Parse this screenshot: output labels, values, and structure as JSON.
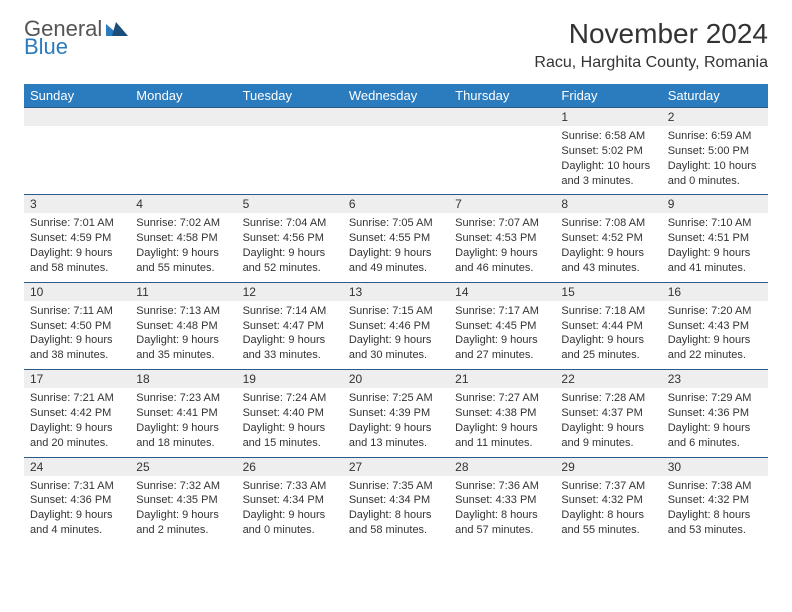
{
  "logo": {
    "general": "General",
    "blue": "Blue"
  },
  "title": "November 2024",
  "location": "Racu, Harghita County, Romania",
  "colors": {
    "header_bg": "#2b7bbf",
    "header_text": "#ffffff",
    "numrow_bg": "#eeeeee",
    "border": "#2b5a8a",
    "text": "#333333",
    "logo_blue": "#2b7bbf",
    "logo_gray": "#555555"
  },
  "day_labels": [
    "Sunday",
    "Monday",
    "Tuesday",
    "Wednesday",
    "Thursday",
    "Friday",
    "Saturday"
  ],
  "weeks": [
    [
      {
        "n": "",
        "sr": "",
        "ss": "",
        "dl": ""
      },
      {
        "n": "",
        "sr": "",
        "ss": "",
        "dl": ""
      },
      {
        "n": "",
        "sr": "",
        "ss": "",
        "dl": ""
      },
      {
        "n": "",
        "sr": "",
        "ss": "",
        "dl": ""
      },
      {
        "n": "",
        "sr": "",
        "ss": "",
        "dl": ""
      },
      {
        "n": "1",
        "sr": "Sunrise: 6:58 AM",
        "ss": "Sunset: 5:02 PM",
        "dl": "Daylight: 10 hours and 3 minutes."
      },
      {
        "n": "2",
        "sr": "Sunrise: 6:59 AM",
        "ss": "Sunset: 5:00 PM",
        "dl": "Daylight: 10 hours and 0 minutes."
      }
    ],
    [
      {
        "n": "3",
        "sr": "Sunrise: 7:01 AM",
        "ss": "Sunset: 4:59 PM",
        "dl": "Daylight: 9 hours and 58 minutes."
      },
      {
        "n": "4",
        "sr": "Sunrise: 7:02 AM",
        "ss": "Sunset: 4:58 PM",
        "dl": "Daylight: 9 hours and 55 minutes."
      },
      {
        "n": "5",
        "sr": "Sunrise: 7:04 AM",
        "ss": "Sunset: 4:56 PM",
        "dl": "Daylight: 9 hours and 52 minutes."
      },
      {
        "n": "6",
        "sr": "Sunrise: 7:05 AM",
        "ss": "Sunset: 4:55 PM",
        "dl": "Daylight: 9 hours and 49 minutes."
      },
      {
        "n": "7",
        "sr": "Sunrise: 7:07 AM",
        "ss": "Sunset: 4:53 PM",
        "dl": "Daylight: 9 hours and 46 minutes."
      },
      {
        "n": "8",
        "sr": "Sunrise: 7:08 AM",
        "ss": "Sunset: 4:52 PM",
        "dl": "Daylight: 9 hours and 43 minutes."
      },
      {
        "n": "9",
        "sr": "Sunrise: 7:10 AM",
        "ss": "Sunset: 4:51 PM",
        "dl": "Daylight: 9 hours and 41 minutes."
      }
    ],
    [
      {
        "n": "10",
        "sr": "Sunrise: 7:11 AM",
        "ss": "Sunset: 4:50 PM",
        "dl": "Daylight: 9 hours and 38 minutes."
      },
      {
        "n": "11",
        "sr": "Sunrise: 7:13 AM",
        "ss": "Sunset: 4:48 PM",
        "dl": "Daylight: 9 hours and 35 minutes."
      },
      {
        "n": "12",
        "sr": "Sunrise: 7:14 AM",
        "ss": "Sunset: 4:47 PM",
        "dl": "Daylight: 9 hours and 33 minutes."
      },
      {
        "n": "13",
        "sr": "Sunrise: 7:15 AM",
        "ss": "Sunset: 4:46 PM",
        "dl": "Daylight: 9 hours and 30 minutes."
      },
      {
        "n": "14",
        "sr": "Sunrise: 7:17 AM",
        "ss": "Sunset: 4:45 PM",
        "dl": "Daylight: 9 hours and 27 minutes."
      },
      {
        "n": "15",
        "sr": "Sunrise: 7:18 AM",
        "ss": "Sunset: 4:44 PM",
        "dl": "Daylight: 9 hours and 25 minutes."
      },
      {
        "n": "16",
        "sr": "Sunrise: 7:20 AM",
        "ss": "Sunset: 4:43 PM",
        "dl": "Daylight: 9 hours and 22 minutes."
      }
    ],
    [
      {
        "n": "17",
        "sr": "Sunrise: 7:21 AM",
        "ss": "Sunset: 4:42 PM",
        "dl": "Daylight: 9 hours and 20 minutes."
      },
      {
        "n": "18",
        "sr": "Sunrise: 7:23 AM",
        "ss": "Sunset: 4:41 PM",
        "dl": "Daylight: 9 hours and 18 minutes."
      },
      {
        "n": "19",
        "sr": "Sunrise: 7:24 AM",
        "ss": "Sunset: 4:40 PM",
        "dl": "Daylight: 9 hours and 15 minutes."
      },
      {
        "n": "20",
        "sr": "Sunrise: 7:25 AM",
        "ss": "Sunset: 4:39 PM",
        "dl": "Daylight: 9 hours and 13 minutes."
      },
      {
        "n": "21",
        "sr": "Sunrise: 7:27 AM",
        "ss": "Sunset: 4:38 PM",
        "dl": "Daylight: 9 hours and 11 minutes."
      },
      {
        "n": "22",
        "sr": "Sunrise: 7:28 AM",
        "ss": "Sunset: 4:37 PM",
        "dl": "Daylight: 9 hours and 9 minutes."
      },
      {
        "n": "23",
        "sr": "Sunrise: 7:29 AM",
        "ss": "Sunset: 4:36 PM",
        "dl": "Daylight: 9 hours and 6 minutes."
      }
    ],
    [
      {
        "n": "24",
        "sr": "Sunrise: 7:31 AM",
        "ss": "Sunset: 4:36 PM",
        "dl": "Daylight: 9 hours and 4 minutes."
      },
      {
        "n": "25",
        "sr": "Sunrise: 7:32 AM",
        "ss": "Sunset: 4:35 PM",
        "dl": "Daylight: 9 hours and 2 minutes."
      },
      {
        "n": "26",
        "sr": "Sunrise: 7:33 AM",
        "ss": "Sunset: 4:34 PM",
        "dl": "Daylight: 9 hours and 0 minutes."
      },
      {
        "n": "27",
        "sr": "Sunrise: 7:35 AM",
        "ss": "Sunset: 4:34 PM",
        "dl": "Daylight: 8 hours and 58 minutes."
      },
      {
        "n": "28",
        "sr": "Sunrise: 7:36 AM",
        "ss": "Sunset: 4:33 PM",
        "dl": "Daylight: 8 hours and 57 minutes."
      },
      {
        "n": "29",
        "sr": "Sunrise: 7:37 AM",
        "ss": "Sunset: 4:32 PM",
        "dl": "Daylight: 8 hours and 55 minutes."
      },
      {
        "n": "30",
        "sr": "Sunrise: 7:38 AM",
        "ss": "Sunset: 4:32 PM",
        "dl": "Daylight: 8 hours and 53 minutes."
      }
    ]
  ]
}
